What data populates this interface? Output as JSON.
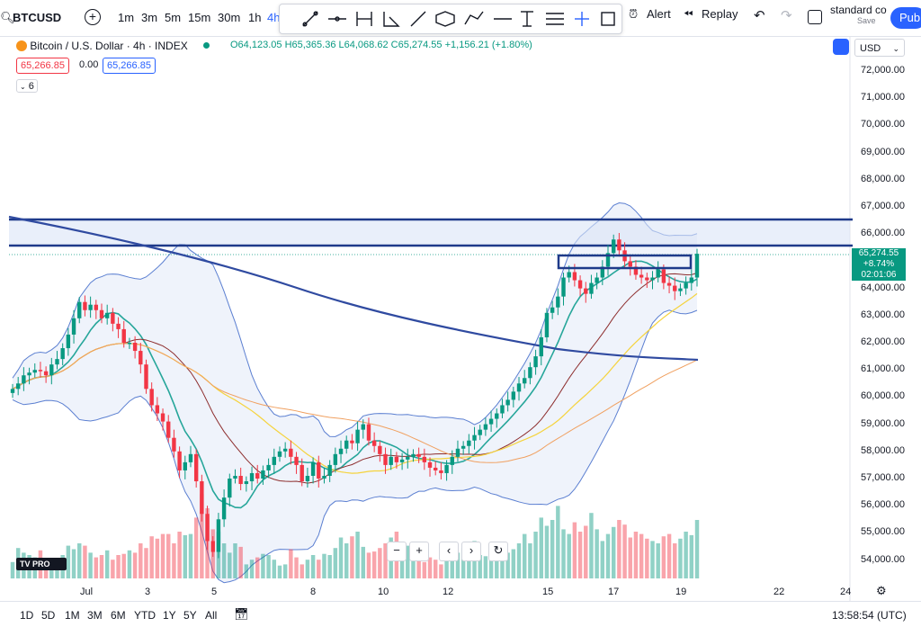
{
  "header": {
    "symbol": "BTCUSD",
    "intervals": [
      "1m",
      "3m",
      "5m",
      "15m",
      "30m",
      "1h",
      "4h"
    ],
    "alert_label": "Alert",
    "replay_label": "Replay",
    "layout_name": "standard co",
    "layout_status": "Save",
    "publish_label": "Publi"
  },
  "legend": {
    "title": "Bitcoin / U.S. Dollar · 4h · INDEX",
    "open": "O64,123.05",
    "high": "H65,365.36",
    "low": "L64,068.62",
    "close": "C65,274.55",
    "change": "+1,156.21 (+1.80%)",
    "bid": "65,266.85",
    "spread": "0.00",
    "ask": "65,266.85",
    "indicators_count": "6"
  },
  "currency": "USD",
  "price_label": {
    "price": "65,274.55",
    "change": "+8.74%",
    "countdown": "02:01:06"
  },
  "y_ticks": [
    "72,000.00",
    "71,000.00",
    "70,000.00",
    "69,000.00",
    "68,000.00",
    "67,000.00",
    "66,000.00",
    "64,000.00",
    "63,000.00",
    "62,000.00",
    "61,000.00",
    "60,000.00",
    "59,000.00",
    "58,000.00",
    "57,000.00",
    "56,000.00",
    "55,000.00",
    "54,000.00"
  ],
  "x_ticks": [
    "Jul",
    "3",
    "5",
    "8",
    "10",
    "12",
    "15",
    "17",
    "19",
    "22",
    "24"
  ],
  "range_buttons": [
    "1D",
    "5D",
    "1M",
    "3M",
    "6M",
    "YTD",
    "1Y",
    "5Y",
    "All"
  ],
  "time_display": "13:58:54 (UTC)",
  "colors": {
    "up": "#089981",
    "down": "#f23645",
    "accent": "#2962ff",
    "box": "#1e3a8a"
  },
  "chart_data": {
    "type": "candlestick",
    "title": "Bitcoin / U.S. Dollar · 4h · INDEX",
    "ylim": [
      53700,
      72700
    ],
    "closes": [
      60300,
      60500,
      60800,
      60900,
      61000,
      60950,
      60800,
      61200,
      61400,
      61800,
      62300,
      62900,
      63500,
      63200,
      63400,
      63200,
      62900,
      63100,
      62700,
      62500,
      62000,
      62000,
      61700,
      61200,
      60300,
      59700,
      59400,
      59100,
      58500,
      58000,
      57300,
      57600,
      57900,
      56900,
      55700,
      54700,
      54300,
      55500,
      56300,
      57000,
      57100,
      56800,
      56900,
      57200,
      57000,
      57300,
      57500,
      57800,
      58000,
      58100,
      57800,
      57500,
      56900,
      57100,
      57600,
      57000,
      57100,
      57500,
      57900,
      58100,
      58400,
      58300,
      58800,
      59000,
      58400,
      58200,
      57900,
      57500,
      57800,
      57600,
      57700,
      57800,
      57900,
      57800,
      57600,
      57400,
      57300,
      57200,
      57500,
      57800,
      58100,
      58200,
      58400,
      58600,
      58800,
      59000,
      59200,
      59400,
      59700,
      59900,
      60200,
      60500,
      60700,
      61100,
      61500,
      62200,
      63100,
      63300,
      63700,
      64400,
      64600,
      64300,
      64000,
      63800,
      64200,
      64400,
      64800,
      65300,
      65800,
      65400,
      65000,
      64800,
      64500,
      64400,
      64300,
      64400,
      64700,
      64200,
      64100,
      63900,
      64000,
      64200,
      64400,
      65275
    ],
    "volumes": [
      14,
      26,
      22,
      20,
      18,
      24,
      16,
      14,
      17,
      20,
      28,
      25,
      30,
      28,
      22,
      18,
      20,
      24,
      16,
      20,
      21,
      24,
      22,
      30,
      26,
      36,
      34,
      38,
      38,
      30,
      40,
      37,
      38,
      52,
      72,
      60,
      42,
      40,
      30,
      22,
      30,
      27,
      12,
      16,
      18,
      21,
      20,
      16,
      11,
      12,
      25,
      18,
      12,
      16,
      20,
      16,
      21,
      20,
      26,
      35,
      30,
      36,
      40,
      27,
      22,
      23,
      26,
      30,
      35,
      40,
      26,
      28,
      20,
      16,
      14,
      18,
      16,
      12,
      22,
      24,
      22,
      26,
      18,
      32,
      20,
      19,
      25,
      30,
      28,
      22,
      25,
      30,
      38,
      30,
      40,
      52,
      45,
      50,
      62,
      42,
      38,
      48,
      40,
      45,
      56,
      42,
      32,
      38,
      44,
      50,
      46,
      35,
      40,
      38,
      34,
      32,
      30,
      36,
      38,
      30,
      34,
      40,
      37,
      50
    ]
  }
}
